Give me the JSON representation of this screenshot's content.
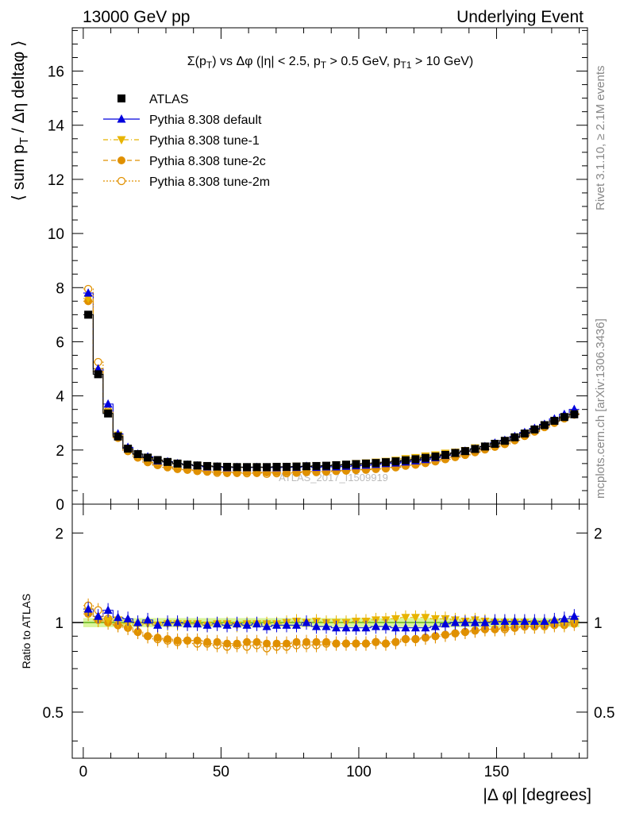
{
  "header": {
    "left": "13000 GeV pp",
    "right": "Underlying Event"
  },
  "side": {
    "rivet": "Rivet 3.1.10, ≥ 2.1M events",
    "mcplots": "mcplots.cern.ch [arXiv:1306.3436]"
  },
  "watermark": "ATLAS_2017_I1509919",
  "colors": {
    "atlas": "#000000",
    "default": "#0000dd",
    "tune1": "#e8b400",
    "tune2c": "#e09000",
    "tune2m": "#e09000",
    "band": "#d9f59a"
  },
  "chart_data": [
    {
      "type": "scatter",
      "title": "Σ(p_T) vs Δφ (|η| < 2.5, p_T > 0.5 GeV, p_T1 > 10 GeV)",
      "ylabel": "⟨ sum p_T / Δη deltaφ ⟩",
      "xlabel": "|Δ φ| [degrees]",
      "xlim": [
        -4,
        183
      ],
      "ylim": [
        0,
        17.6
      ],
      "yticks": [
        0,
        2,
        4,
        6,
        8,
        10,
        12,
        14,
        16
      ],
      "legend_position": "top-left",
      "legend": [
        "ATLAS",
        "Pythia 8.308 default",
        "Pythia 8.308 tune-1",
        "Pythia 8.308 tune-2c",
        "Pythia 8.308 tune-2m"
      ],
      "x": [
        1.8,
        5.4,
        9.0,
        12.6,
        16.2,
        19.8,
        23.4,
        27.0,
        30.6,
        34.2,
        37.8,
        41.4,
        45.0,
        48.6,
        52.2,
        55.8,
        59.4,
        63.0,
        66.6,
        70.2,
        73.8,
        77.4,
        81.0,
        84.6,
        88.2,
        91.8,
        95.4,
        99.0,
        102.6,
        106.2,
        109.8,
        113.4,
        117.0,
        120.6,
        124.2,
        127.8,
        131.4,
        135.0,
        138.6,
        142.2,
        145.8,
        149.4,
        153.0,
        156.6,
        160.2,
        163.8,
        167.4,
        171.0,
        174.6,
        178.2
      ],
      "series": [
        {
          "name": "ATLAS",
          "values": [
            7.0,
            4.8,
            3.35,
            2.5,
            2.05,
            1.85,
            1.72,
            1.63,
            1.56,
            1.5,
            1.46,
            1.43,
            1.41,
            1.39,
            1.38,
            1.37,
            1.37,
            1.37,
            1.37,
            1.38,
            1.38,
            1.39,
            1.4,
            1.41,
            1.42,
            1.44,
            1.46,
            1.48,
            1.5,
            1.52,
            1.55,
            1.58,
            1.62,
            1.66,
            1.71,
            1.76,
            1.82,
            1.89,
            1.96,
            2.04,
            2.13,
            2.23,
            2.34,
            2.47,
            2.61,
            2.76,
            2.92,
            3.08,
            3.22,
            3.32
          ]
        },
        {
          "name": "Pythia 8.308 default",
          "values": [
            7.8,
            5.0,
            3.7,
            2.6,
            2.1,
            1.85,
            1.75,
            1.6,
            1.57,
            1.5,
            1.45,
            1.42,
            1.38,
            1.38,
            1.35,
            1.36,
            1.35,
            1.36,
            1.35,
            1.35,
            1.36,
            1.36,
            1.4,
            1.36,
            1.38,
            1.38,
            1.4,
            1.42,
            1.44,
            1.47,
            1.5,
            1.52,
            1.56,
            1.6,
            1.65,
            1.72,
            1.8,
            1.88,
            1.96,
            2.04,
            2.13,
            2.26,
            2.36,
            2.5,
            2.65,
            2.8,
            2.95,
            3.15,
            3.32,
            3.5
          ]
        },
        {
          "name": "Pythia 8.308 tune-1",
          "values": [
            7.6,
            4.9,
            3.4,
            2.55,
            2.02,
            1.82,
            1.7,
            1.6,
            1.54,
            1.48,
            1.44,
            1.42,
            1.38,
            1.38,
            1.36,
            1.35,
            1.36,
            1.35,
            1.36,
            1.37,
            1.38,
            1.4,
            1.4,
            1.42,
            1.42,
            1.44,
            1.46,
            1.5,
            1.52,
            1.55,
            1.58,
            1.62,
            1.68,
            1.72,
            1.78,
            1.82,
            1.88,
            1.92,
            1.98,
            2.08,
            2.14,
            2.24,
            2.34,
            2.46,
            2.6,
            2.74,
            2.9,
            3.08,
            3.2,
            3.35
          ]
        },
        {
          "name": "Pythia 8.308 tune-2c",
          "values": [
            7.5,
            4.9,
            3.4,
            2.45,
            1.96,
            1.72,
            1.55,
            1.44,
            1.38,
            1.3,
            1.27,
            1.24,
            1.21,
            1.2,
            1.18,
            1.17,
            1.18,
            1.18,
            1.17,
            1.18,
            1.18,
            1.19,
            1.2,
            1.21,
            1.22,
            1.23,
            1.24,
            1.26,
            1.28,
            1.3,
            1.32,
            1.36,
            1.42,
            1.46,
            1.52,
            1.58,
            1.66,
            1.74,
            1.82,
            1.92,
            2.02,
            2.12,
            2.24,
            2.36,
            2.52,
            2.68,
            2.84,
            3.0,
            3.16,
            3.3
          ]
        },
        {
          "name": "Pythia 8.308 tune-2m",
          "values": [
            7.95,
            5.25,
            3.45,
            2.45,
            1.96,
            1.72,
            1.55,
            1.44,
            1.36,
            1.3,
            1.27,
            1.22,
            1.2,
            1.16,
            1.15,
            1.15,
            1.14,
            1.15,
            1.12,
            1.14,
            1.14,
            1.16,
            1.18,
            1.18,
            1.2,
            1.22,
            1.24,
            1.26,
            1.27,
            1.3,
            1.32,
            1.36,
            1.42,
            1.46,
            1.52,
            1.58,
            1.66,
            1.74,
            1.82,
            1.92,
            2.02,
            2.12,
            2.22,
            2.36,
            2.52,
            2.68,
            2.86,
            3.04,
            3.2,
            3.35
          ]
        }
      ]
    },
    {
      "type": "scatter",
      "ylabel": "Ratio to ATLAS",
      "xlabel": "|Δ φ| [degrees]",
      "xlim": [
        -4,
        183
      ],
      "ylim": [
        0.35,
        2.5
      ],
      "yscale": "log",
      "yticks": [
        0.5,
        1,
        2
      ],
      "xticks": [
        0,
        50,
        100,
        150
      ],
      "x": [
        1.8,
        5.4,
        9.0,
        12.6,
        16.2,
        19.8,
        23.4,
        27.0,
        30.6,
        34.2,
        37.8,
        41.4,
        45.0,
        48.6,
        52.2,
        55.8,
        59.4,
        63.0,
        66.6,
        70.2,
        73.8,
        77.4,
        81.0,
        84.6,
        88.2,
        91.8,
        95.4,
        99.0,
        102.6,
        106.2,
        109.8,
        113.4,
        117.0,
        120.6,
        124.2,
        127.8,
        131.4,
        135.0,
        138.6,
        142.2,
        145.8,
        149.4,
        153.0,
        156.6,
        160.2,
        163.8,
        167.4,
        171.0,
        174.6,
        178.2
      ],
      "series": [
        {
          "name": "Pythia 8.308 default",
          "values": [
            1.11,
            1.05,
            1.1,
            1.04,
            1.03,
            1.0,
            1.02,
            0.98,
            1.0,
            1.0,
            0.99,
            0.99,
            0.98,
            0.99,
            0.98,
            0.99,
            0.98,
            0.99,
            0.97,
            0.98,
            0.98,
            0.98,
            1.0,
            0.97,
            0.97,
            0.96,
            0.96,
            0.96,
            0.96,
            0.97,
            0.97,
            0.96,
            0.96,
            0.96,
            0.96,
            0.97,
            0.99,
            1.0,
            1.0,
            1.0,
            1.0,
            1.01,
            1.01,
            1.01,
            1.01,
            1.01,
            1.01,
            1.02,
            1.03,
            1.05
          ]
        },
        {
          "name": "Pythia 8.308 tune-1",
          "values": [
            1.09,
            1.02,
            1.02,
            1.02,
            0.99,
            0.98,
            0.99,
            0.98,
            0.99,
            0.99,
            0.99,
            0.99,
            0.98,
            0.99,
            0.99,
            0.98,
            0.99,
            0.99,
            0.99,
            0.99,
            1.0,
            1.01,
            1.0,
            1.01,
            1.0,
            1.0,
            1.0,
            1.01,
            1.01,
            1.02,
            1.02,
            1.03,
            1.04,
            1.04,
            1.04,
            1.03,
            1.03,
            1.02,
            1.01,
            1.02,
            1.01,
            1.0,
            1.0,
            1.0,
            1.0,
            0.99,
            0.99,
            1.0,
            0.99,
            1.01
          ]
        },
        {
          "name": "Pythia 8.308 tune-2c",
          "values": [
            1.07,
            1.02,
            1.0,
            0.98,
            0.96,
            0.93,
            0.9,
            0.89,
            0.88,
            0.87,
            0.87,
            0.87,
            0.86,
            0.86,
            0.85,
            0.85,
            0.86,
            0.86,
            0.85,
            0.85,
            0.85,
            0.86,
            0.86,
            0.86,
            0.86,
            0.85,
            0.85,
            0.85,
            0.85,
            0.86,
            0.85,
            0.86,
            0.88,
            0.88,
            0.89,
            0.9,
            0.91,
            0.92,
            0.93,
            0.94,
            0.95,
            0.95,
            0.96,
            0.96,
            0.97,
            0.97,
            0.97,
            0.98,
            0.98,
            0.99
          ]
        },
        {
          "name": "Pythia 8.308 tune-2m",
          "values": [
            1.14,
            1.1,
            1.03,
            0.98,
            0.96,
            0.93,
            0.9,
            0.88,
            0.87,
            0.86,
            0.87,
            0.85,
            0.85,
            0.84,
            0.83,
            0.84,
            0.83,
            0.84,
            0.82,
            0.83,
            0.83,
            0.84,
            0.84,
            0.84,
            0.85,
            0.85,
            0.85,
            0.85,
            0.85,
            0.86,
            0.85,
            0.86,
            0.88,
            0.88,
            0.89,
            0.9,
            0.91,
            0.92,
            0.93,
            0.94,
            0.95,
            0.95,
            0.95,
            0.96,
            0.97,
            0.97,
            0.98,
            0.99,
            0.99,
            1.01
          ]
        }
      ]
    }
  ]
}
